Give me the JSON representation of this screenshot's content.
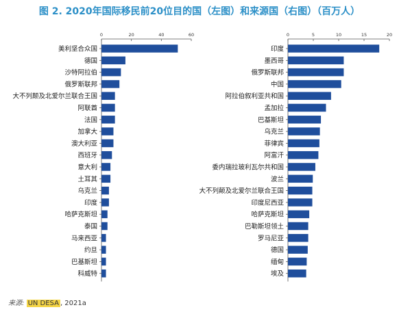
{
  "title": "图 2. 2020年国际移民前20位目的国（左图）和来源国（右图）（百万人）",
  "source": {
    "lead": "来源:",
    "highlight": "UN DESA",
    "rest": ", 2021a"
  },
  "colors": {
    "bar": "#1f4e9c",
    "axis": "#555555",
    "title": "#2b8fc7"
  },
  "chart_data": [
    {
      "type": "bar",
      "orientation": "horizontal",
      "title": "",
      "xlim": [
        0,
        60
      ],
      "xticks": [
        0,
        20,
        40,
        60
      ],
      "xtick_position": "top",
      "categories": [
        "美利坚合众国",
        "德国",
        "沙特阿拉伯",
        "俄罗斯联邦",
        "大不列颠及北爱尔兰联合王国",
        "阿联酋",
        "法国",
        "加拿大",
        "澳大利亚",
        "西班牙",
        "意大利",
        "土耳其",
        "乌克兰",
        "印度",
        "哈萨克斯坦",
        "泰国",
        "马来西亚",
        "约旦",
        "巴基斯坦",
        "科威特"
      ],
      "values": [
        51,
        16,
        13,
        12,
        9,
        9,
        9,
        8,
        8,
        7,
        6,
        6,
        5,
        5,
        4,
        4,
        3,
        3,
        3,
        3
      ]
    },
    {
      "type": "bar",
      "orientation": "horizontal",
      "title": "",
      "xlim": [
        0,
        20
      ],
      "xticks": [
        0,
        5,
        10,
        15,
        20
      ],
      "xtick_position": "top",
      "categories": [
        "印度",
        "墨西哥",
        "俄罗斯联邦",
        "中国",
        "阿拉伯叙利亚共和国",
        "孟加拉",
        "巴基斯坦",
        "乌克兰",
        "菲律宾",
        "阿富汗",
        "委内瑞拉玻利瓦尔共和国",
        "波兰",
        "大不列颠及北爱尔兰联合王国",
        "印度尼西亚",
        "哈萨克斯坦",
        "巴勒斯坦领土",
        "罗马尼亚",
        "德国",
        "缅甸",
        "埃及"
      ],
      "values": [
        18,
        11,
        11,
        10.5,
        8.5,
        7.5,
        6.5,
        6.3,
        6.2,
        6,
        5.4,
        4.9,
        4.8,
        4.8,
        4.2,
        4,
        4,
        3.9,
        3.7,
        3.6
      ]
    }
  ]
}
